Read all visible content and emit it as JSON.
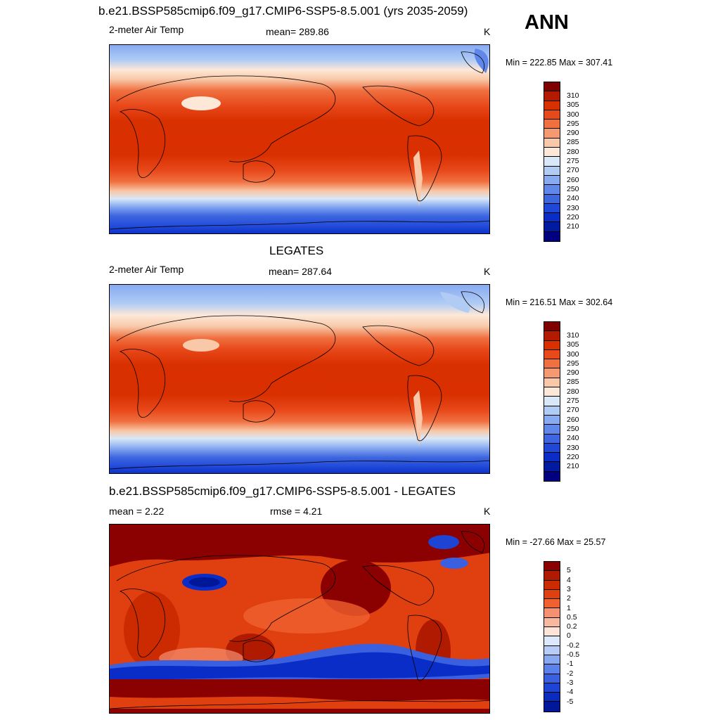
{
  "annual_label": "ANN",
  "panels": [
    {
      "title": "b.e21.BSSP585cmip6.f09_g17.CMIP6-SSP5-8.5.001 (yrs 2035-2059)",
      "left_label": "2-meter Air Temp",
      "center_label": "mean= 289.86",
      "right_label": "K",
      "minmax": "Min = 222.85 Max = 307.41",
      "colorbar": {
        "colors": [
          "#7f0000",
          "#b31a00",
          "#d93000",
          "#e8481a",
          "#f07040",
          "#f59a70",
          "#f8c8a8",
          "#fde8d8",
          "#d8e8f8",
          "#b0ccf5",
          "#88aaf0",
          "#5f88ea",
          "#3d66e0",
          "#1f48d8",
          "#0a2dc8",
          "#001aa0",
          "#000080"
        ],
        "labels": [
          "310",
          "305",
          "300",
          "295",
          "290",
          "285",
          "280",
          "275",
          "270",
          "260",
          "250",
          "240",
          "230",
          "220",
          "210"
        ]
      }
    },
    {
      "title": "LEGATES",
      "left_label": "2-meter Air Temp",
      "center_label": "mean= 287.64",
      "right_label": "K",
      "minmax": "Min = 216.51 Max = 302.64",
      "colorbar": {
        "colors": [
          "#7f0000",
          "#b31a00",
          "#d93000",
          "#e8481a",
          "#f07040",
          "#f59a70",
          "#f8c8a8",
          "#fde8d8",
          "#d8e8f8",
          "#b0ccf5",
          "#88aaf0",
          "#5f88ea",
          "#3d66e0",
          "#1f48d8",
          "#0a2dc8",
          "#001aa0",
          "#000080"
        ],
        "labels": [
          "310",
          "305",
          "300",
          "295",
          "290",
          "285",
          "280",
          "275",
          "270",
          "260",
          "250",
          "240",
          "230",
          "220",
          "210"
        ]
      }
    },
    {
      "title": "b.e21.BSSP585cmip6.f09_g17.CMIP6-SSP5-8.5.001 - LEGATES",
      "left_label": "mean =   2.22",
      "center_label": "rmse =    4.21",
      "right_label": "K",
      "minmax": "Min = -27.66 Max =  25.57",
      "colorbar": {
        "colors": [
          "#8b0000",
          "#b01a00",
          "#cc2a00",
          "#e04010",
          "#f06030",
          "#f59070",
          "#f8b8a0",
          "#fde4d8",
          "#dce8fc",
          "#b8ccf8",
          "#88a8f0",
          "#5a82ea",
          "#3a60e0",
          "#1e44d4",
          "#0a2cbe",
          "#001898"
        ],
        "labels": [
          "5",
          "4",
          "3",
          "2",
          "1",
          "0.5",
          "0.2",
          "0",
          "-0.2",
          "-0.5",
          "-1",
          "-2",
          "-3",
          "-4",
          "-5"
        ]
      }
    }
  ]
}
